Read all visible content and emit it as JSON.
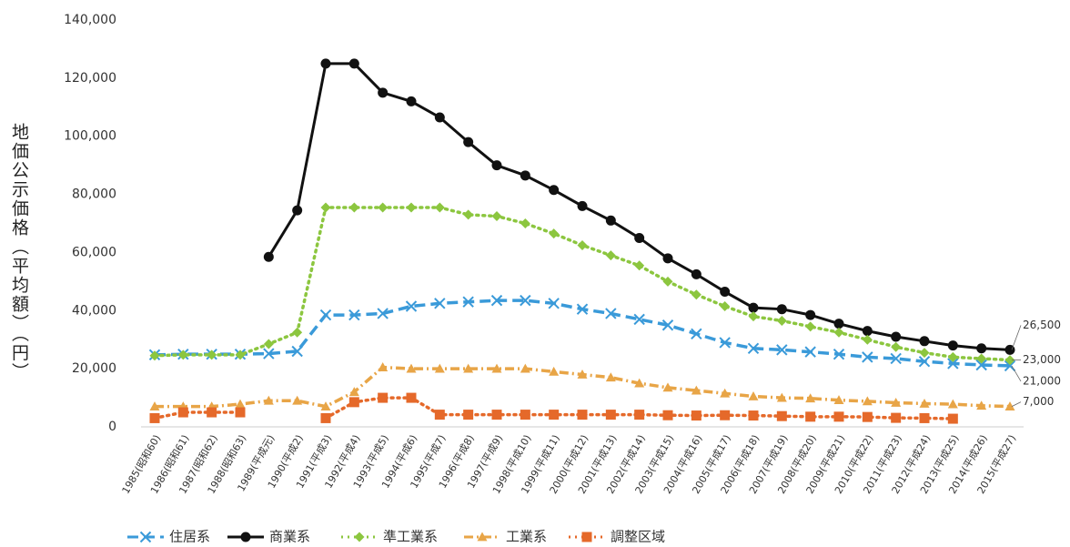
{
  "chart_data": {
    "type": "line",
    "y_label": "地価公示価格（平均額）（円）",
    "categories": [
      "1985(昭和60)",
      "1986(昭和61)",
      "1987(昭和62)",
      "1988(昭和63)",
      "1989(平成元)",
      "1990(平成2)",
      "1991(平成3)",
      "1992(平成4)",
      "1993(平成5)",
      "1994(平成6)",
      "1995(平成7)",
      "1996(平成8)",
      "1997(平成9)",
      "1998(平成10)",
      "1999(平成11)",
      "2000(平成12)",
      "2001(平成13)",
      "2002(平成14)",
      "2003(平成15)",
      "2004(平成16)",
      "2005(平成17)",
      "2006(平成18)",
      "2007(平成19)",
      "2008(平成20)",
      "2009(平成21)",
      "2010(平成22)",
      "2011(平成23)",
      "2012(平成24)",
      "2013(平成25)",
      "2014(平成26)",
      "2015(平成27)"
    ],
    "series": [
      {
        "name": "住居系",
        "color": "#3a9ad9",
        "marker": "x",
        "dash": "dashed",
        "values": [
          24800,
          25000,
          25000,
          25000,
          25200,
          26000,
          38500,
          38500,
          39000,
          41500,
          42500,
          43000,
          43500,
          43500,
          42500,
          40500,
          39000,
          37000,
          35000,
          32000,
          29000,
          27000,
          26500,
          25800,
          25000,
          24000,
          23500,
          22500,
          21800,
          21300,
          21000
        ]
      },
      {
        "name": "商業系",
        "color": "#111111",
        "marker": "circle",
        "dash": "solid",
        "values": [
          null,
          null,
          null,
          null,
          58500,
          74500,
          125000,
          125000,
          115000,
          112000,
          106500,
          98000,
          90000,
          86500,
          81500,
          76000,
          71000,
          65000,
          58000,
          52500,
          46500,
          41000,
          40500,
          38500,
          35500,
          33000,
          31000,
          29500,
          28000,
          27000,
          26500
        ]
      },
      {
        "name": "準工業系",
        "color": "#8cc63f",
        "marker": "diamond",
        "dash": "dotted",
        "values": [
          24500,
          24800,
          24800,
          24800,
          28500,
          32500,
          75500,
          75500,
          75500,
          75500,
          75500,
          73000,
          72500,
          70000,
          66500,
          62500,
          59000,
          55500,
          50000,
          45500,
          41500,
          38000,
          36500,
          34500,
          32500,
          30000,
          27500,
          25500,
          24000,
          23500,
          23000
        ]
      },
      {
        "name": "工業系",
        "color": "#e8a547",
        "marker": "triangle",
        "dash": "dashdot",
        "values": [
          7000,
          7000,
          7000,
          7800,
          9000,
          9000,
          7000,
          12000,
          20500,
          20000,
          20000,
          20000,
          20000,
          20000,
          19000,
          18000,
          17000,
          15000,
          13500,
          12500,
          11500,
          10500,
          10000,
          9800,
          9200,
          8800,
          8300,
          8000,
          7800,
          7300,
          7000
        ]
      },
      {
        "name": "調整区域",
        "color": "#e5692a",
        "marker": "square",
        "dash": "dotted",
        "values": [
          3000,
          5000,
          5000,
          5000,
          null,
          null,
          3000,
          8500,
          10000,
          10000,
          4200,
          4200,
          4200,
          4200,
          4200,
          4200,
          4200,
          4200,
          4000,
          3900,
          4000,
          3900,
          3700,
          3500,
          3500,
          3400,
          3100,
          3000,
          2800,
          null,
          null
        ]
      }
    ],
    "annotations": [
      "26,500",
      "23,000",
      "21,000",
      "7,000"
    ],
    "ylim": [
      0,
      140000
    ],
    "yticks": [
      0,
      {
        "value": 20000,
        "label": "20,000"
      },
      {
        "value": 40000,
        "label": "40,000"
      },
      {
        "value": 60000,
        "label": "60,000"
      },
      {
        "value": 80000,
        "label": "80,000"
      },
      {
        "value": 100000,
        "label": "100,000"
      },
      {
        "value": 120000,
        "label": "120,000"
      },
      {
        "value": 140000,
        "label": "140,000"
      }
    ],
    "grid": false
  }
}
